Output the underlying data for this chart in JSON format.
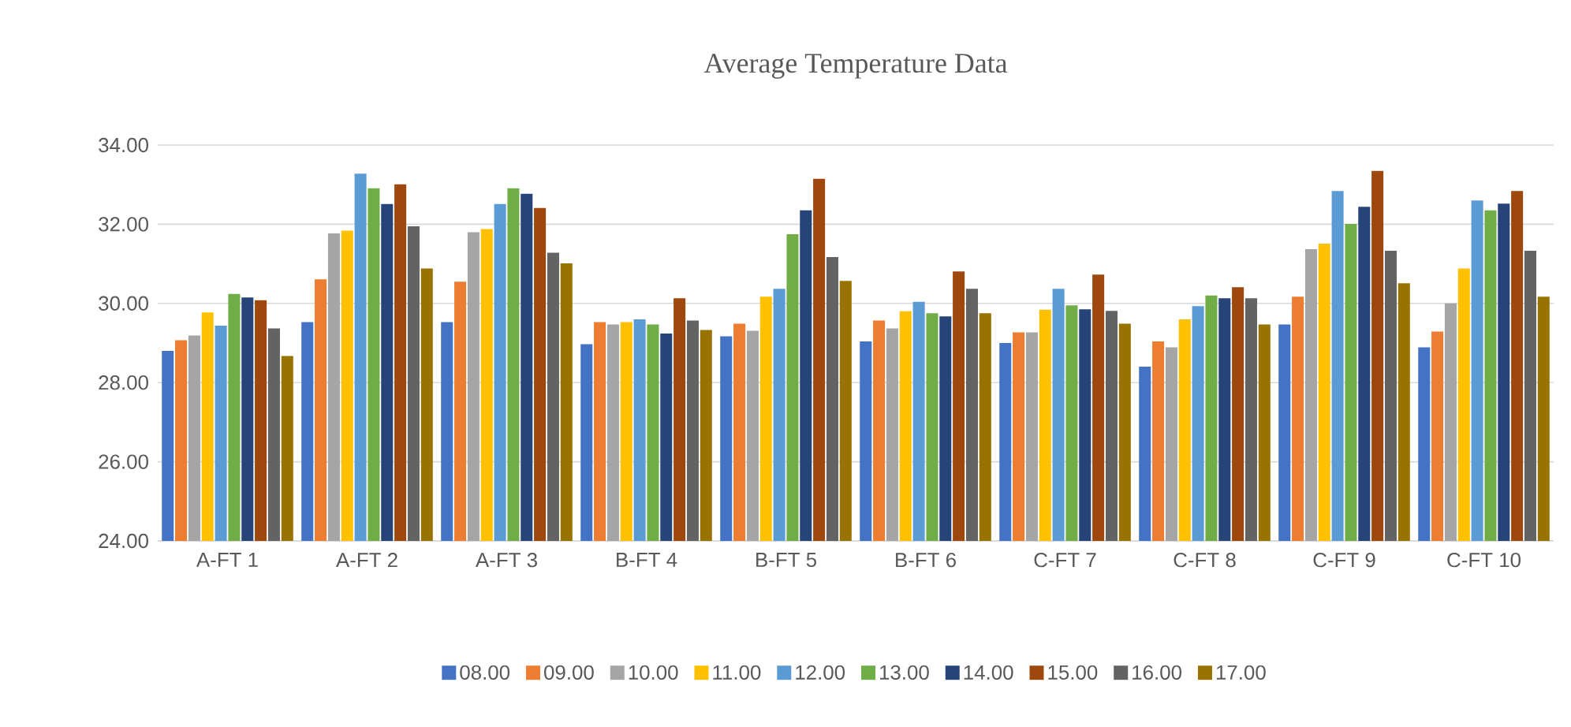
{
  "chart_data": {
    "type": "bar",
    "title": "Average Temperature Data",
    "categories": [
      "A-FT 1",
      "A-FT 2",
      "A-FT 3",
      "B-FT 4",
      "B-FT 5",
      "B-FT 6",
      "C-FT 7",
      "C-FT 8",
      "C-FT 9",
      "C-FT 10"
    ],
    "series": [
      {
        "name": "08.00",
        "color": "#4472c4",
        "values": [
          28.8,
          29.53,
          29.53,
          28.97,
          29.17,
          29.04,
          29.0,
          28.4,
          29.47,
          28.89
        ]
      },
      {
        "name": "09.00",
        "color": "#ed7d31",
        "values": [
          29.07,
          30.61,
          30.55,
          29.53,
          29.49,
          29.57,
          29.27,
          29.04,
          30.17,
          29.29
        ]
      },
      {
        "name": "10.00",
        "color": "#a5a5a5",
        "values": [
          29.19,
          31.77,
          31.8,
          29.47,
          29.31,
          29.37,
          29.27,
          28.89,
          31.37,
          30.0
        ]
      },
      {
        "name": "11.00",
        "color": "#ffc000",
        "values": [
          29.77,
          31.84,
          31.88,
          29.53,
          30.17,
          29.8,
          29.84,
          29.6,
          31.51,
          30.88
        ]
      },
      {
        "name": "12.00",
        "color": "#5b9bd5",
        "values": [
          29.44,
          33.28,
          32.51,
          29.6,
          30.37,
          30.04,
          30.37,
          29.93,
          32.84,
          32.6
        ]
      },
      {
        "name": "13.00",
        "color": "#70ad47",
        "values": [
          30.24,
          32.91,
          32.91,
          29.47,
          31.75,
          29.75,
          29.95,
          30.2,
          32.01,
          32.35
        ]
      },
      {
        "name": "14.00",
        "color": "#264478",
        "values": [
          30.15,
          32.51,
          32.77,
          29.24,
          32.35,
          29.67,
          29.85,
          30.13,
          32.44,
          32.52
        ]
      },
      {
        "name": "15.00",
        "color": "#9e480e",
        "values": [
          30.08,
          33.01,
          32.41,
          30.13,
          33.15,
          30.81,
          30.73,
          30.41,
          33.35,
          32.84
        ]
      },
      {
        "name": "16.00",
        "color": "#636363",
        "values": [
          29.37,
          31.95,
          31.28,
          29.57,
          31.17,
          30.37,
          29.81,
          30.13,
          31.33,
          31.33
        ]
      },
      {
        "name": "17.00",
        "color": "#997300",
        "values": [
          28.67,
          30.88,
          31.01,
          29.33,
          30.57,
          29.75,
          29.49,
          29.47,
          30.51,
          30.17
        ]
      }
    ],
    "ylim": [
      24,
      34
    ],
    "yticks": [
      {
        "value": 24,
        "label": "24.00"
      },
      {
        "value": 26,
        "label": "26.00"
      },
      {
        "value": 28,
        "label": "28.00"
      },
      {
        "value": 30,
        "label": "30.00"
      },
      {
        "value": 32,
        "label": "32.00"
      },
      {
        "value": 34,
        "label": "34.00"
      }
    ],
    "grid": "y",
    "legend": "bottom"
  }
}
